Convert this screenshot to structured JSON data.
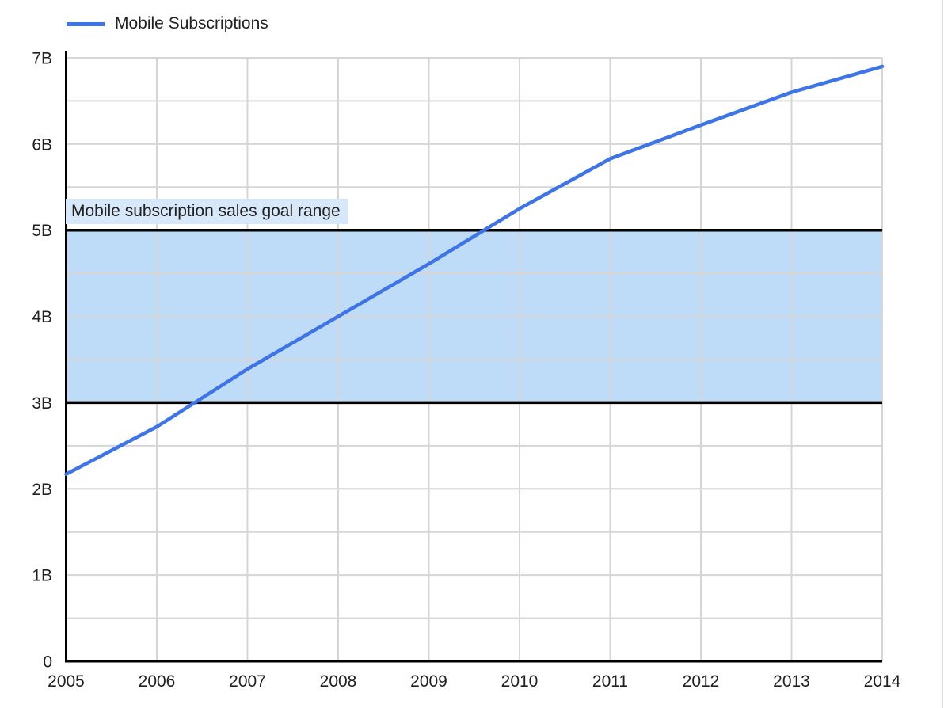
{
  "colors": {
    "background": "#FFFFFF",
    "series_blue": "#3D74E8",
    "band_fill": "#BEDCF7",
    "band_border": "#000000",
    "annotation_bg": "#D8E8FB",
    "gridline": "#D6D6D6",
    "axis": "#000000",
    "text": "#212121"
  },
  "legend": {
    "position": "top-left",
    "items": [
      {
        "label": "Mobile Subscriptions",
        "color": "#3D74E8"
      }
    ]
  },
  "annotation": {
    "label": "Mobile subscription sales goal range"
  },
  "chart_data": {
    "type": "line",
    "title": "",
    "x": [
      2005,
      2006,
      2007,
      2008,
      2009,
      2010,
      2011,
      2012,
      2013,
      2014
    ],
    "x_tick_labels": [
      "2005",
      "2006",
      "2007",
      "2008",
      "2009",
      "2010",
      "2011",
      "2012",
      "2013",
      "2014"
    ],
    "series": [
      {
        "name": "Mobile Subscriptions",
        "color": "#3D74E8",
        "values": [
          2.17,
          2.72,
          3.39,
          4.0,
          4.61,
          5.25,
          5.83,
          6.22,
          6.6,
          6.9
        ]
      }
    ],
    "y_unit": "billions",
    "y_ticks": [
      {
        "value": 0,
        "label": "0"
      },
      {
        "value": 1,
        "label": "1B"
      },
      {
        "value": 2,
        "label": "2B"
      },
      {
        "value": 3,
        "label": "3B"
      },
      {
        "value": 4,
        "label": "4B"
      },
      {
        "value": 5,
        "label": "5B"
      },
      {
        "value": 6,
        "label": "6B"
      },
      {
        "value": 7,
        "label": "7B"
      }
    ],
    "ylim": [
      0,
      7
    ],
    "xlim": [
      2005,
      2014
    ],
    "grid": {
      "horizontal_step": 0.5,
      "vertical_step_years": 1,
      "gridlines_on": true
    },
    "legend_position": "top-left",
    "band": {
      "label": "Mobile subscription sales goal range",
      "from": 3,
      "to": 5,
      "fill": "#BEDCF7",
      "border_color": "#000000"
    }
  }
}
